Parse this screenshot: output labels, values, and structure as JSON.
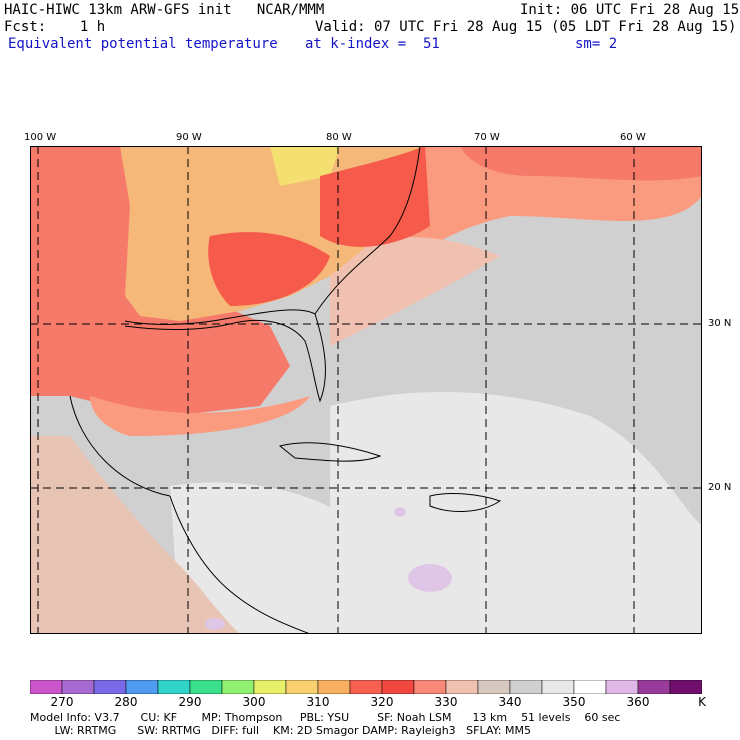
{
  "header": {
    "title": "HAIC-HIWC 13km ARW-GFS init   NCAR/MMM",
    "init": "Init: 06 UTC Fri 28 Aug 15",
    "fcst": "Fcst:    1 h",
    "valid": "Valid: 07 UTC Fri 28 Aug 15 (05 LDT Fri 28 Aug 15)",
    "field": "Equivalent potential temperature",
    "level": "at k-index =  51",
    "smooth": "sm= 2"
  },
  "map": {
    "lon_labels": [
      "100 W",
      "90 W",
      "80 W",
      "70 W",
      "60 W"
    ],
    "lat_labels": [
      "30 N",
      "20 N"
    ],
    "colors": {
      "hot": "#f55a4b",
      "warm": "#fa9b80",
      "tan": "#f5b878",
      "yellow": "#f3e070",
      "gray": "#d0d0d0",
      "lightgray": "#e8e8e8",
      "cool": "#e0c6e6"
    }
  },
  "colorbar": {
    "ticks": [
      "270",
      "280",
      "290",
      "300",
      "310",
      "320",
      "330",
      "340",
      "350",
      "360",
      "K"
    ],
    "colors": [
      "#cc55cc",
      "#a66ad0",
      "#7b6ae8",
      "#4f9bef",
      "#30d4c8",
      "#3ae08a",
      "#90f070",
      "#e8f06a",
      "#f8d070",
      "#f8b060",
      "#f86050",
      "#f04840",
      "#f88878",
      "#f0c0b0",
      "#d8c8c0",
      "#d0d0d0",
      "#e8e8e8",
      "#ffffff",
      "#e0b8e8",
      "#9a3a9a",
      "#70106c"
    ]
  },
  "footer": {
    "line1": "Model Info: V3.7      CU: KF       MP: Thompson     PBL: YSU        SF: Noah LSM      13 km    51 levels    60 sec",
    "line2": "       LW: RRTMG      SW: RRTMG   DIFF: full    KM: 2D Smagor DAMP: Rayleigh3   SFLAY: MM5"
  }
}
